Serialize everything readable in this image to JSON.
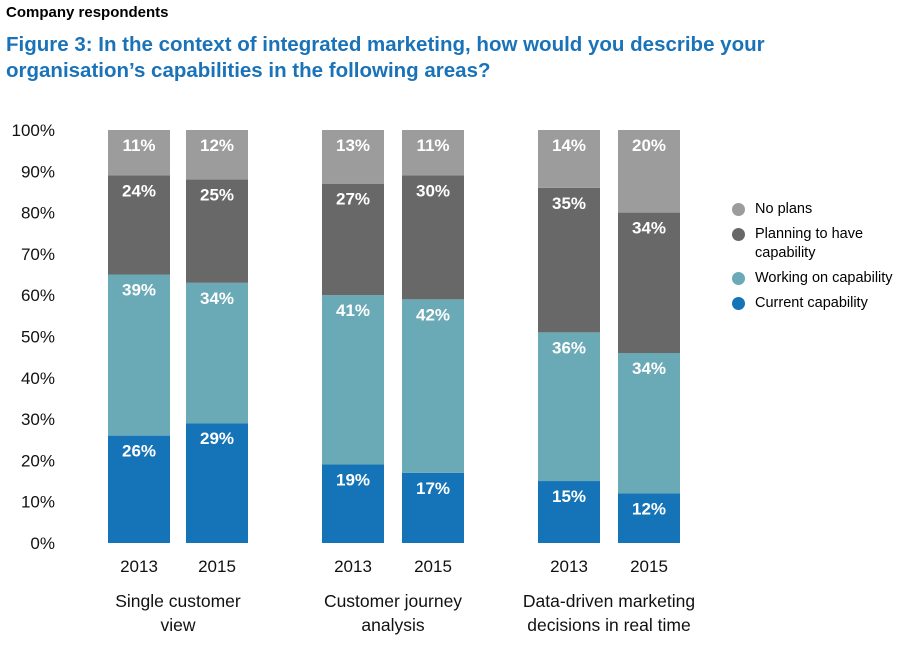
{
  "header": {
    "eyebrow": "Company respondents",
    "title": "Figure 3: In the context of integrated marketing, how would you describe your organisation’s capabilities in the following areas?"
  },
  "colors": {
    "no_plans": "#9c9c9c",
    "planning": "#686868",
    "working": "#6aa9b6",
    "current": "#1573b7"
  },
  "chart_data": {
    "type": "bar",
    "stacked": true,
    "ylim": [
      0,
      100
    ],
    "yticks": [
      "0%",
      "10%",
      "20%",
      "30%",
      "40%",
      "50%",
      "60%",
      "70%",
      "80%",
      "90%",
      "100%"
    ],
    "groups": [
      {
        "label": "Single customer view",
        "label_lines": [
          "Single customer",
          "view"
        ],
        "categories": [
          "2013",
          "2015"
        ]
      },
      {
        "label": "Customer journey analysis",
        "label_lines": [
          "Customer journey",
          "analysis"
        ],
        "categories": [
          "2013",
          "2015"
        ]
      },
      {
        "label": "Data-driven marketing decisions in real time",
        "label_lines": [
          "Data-driven marketing",
          "decisions in real time"
        ],
        "categories": [
          "2013",
          "2015"
        ]
      }
    ],
    "series": [
      {
        "name": "Current capability",
        "key": "current",
        "values": [
          26,
          29,
          19,
          17,
          15,
          12
        ],
        "labels": [
          "26%",
          "29%",
          "19%",
          "17%",
          "15%",
          "12%"
        ]
      },
      {
        "name": "Working on capability",
        "key": "working",
        "values": [
          39,
          34,
          41,
          42,
          36,
          34
        ],
        "labels": [
          "39%",
          "34%",
          "41%",
          "42%",
          "36%",
          "34%"
        ]
      },
      {
        "name": "Planning to have capability",
        "key": "planning",
        "values": [
          24,
          25,
          27,
          30,
          35,
          34
        ],
        "labels": [
          "24%",
          "25%",
          "27%",
          "30%",
          "35%",
          "34%"
        ]
      },
      {
        "name": "No plans",
        "key": "no_plans",
        "values": [
          11,
          12,
          13,
          11,
          14,
          20
        ],
        "labels": [
          "11%",
          "12%",
          "13%",
          "11%",
          "14%",
          "20%"
        ]
      }
    ],
    "legend": {
      "placement": "right",
      "items": [
        {
          "key": "no_plans",
          "lines": [
            "No plans"
          ]
        },
        {
          "key": "planning",
          "lines": [
            "Planning to have",
            "capability"
          ]
        },
        {
          "key": "working",
          "lines": [
            "Working on capability"
          ]
        },
        {
          "key": "current",
          "lines": [
            "Current capability"
          ]
        }
      ]
    }
  }
}
